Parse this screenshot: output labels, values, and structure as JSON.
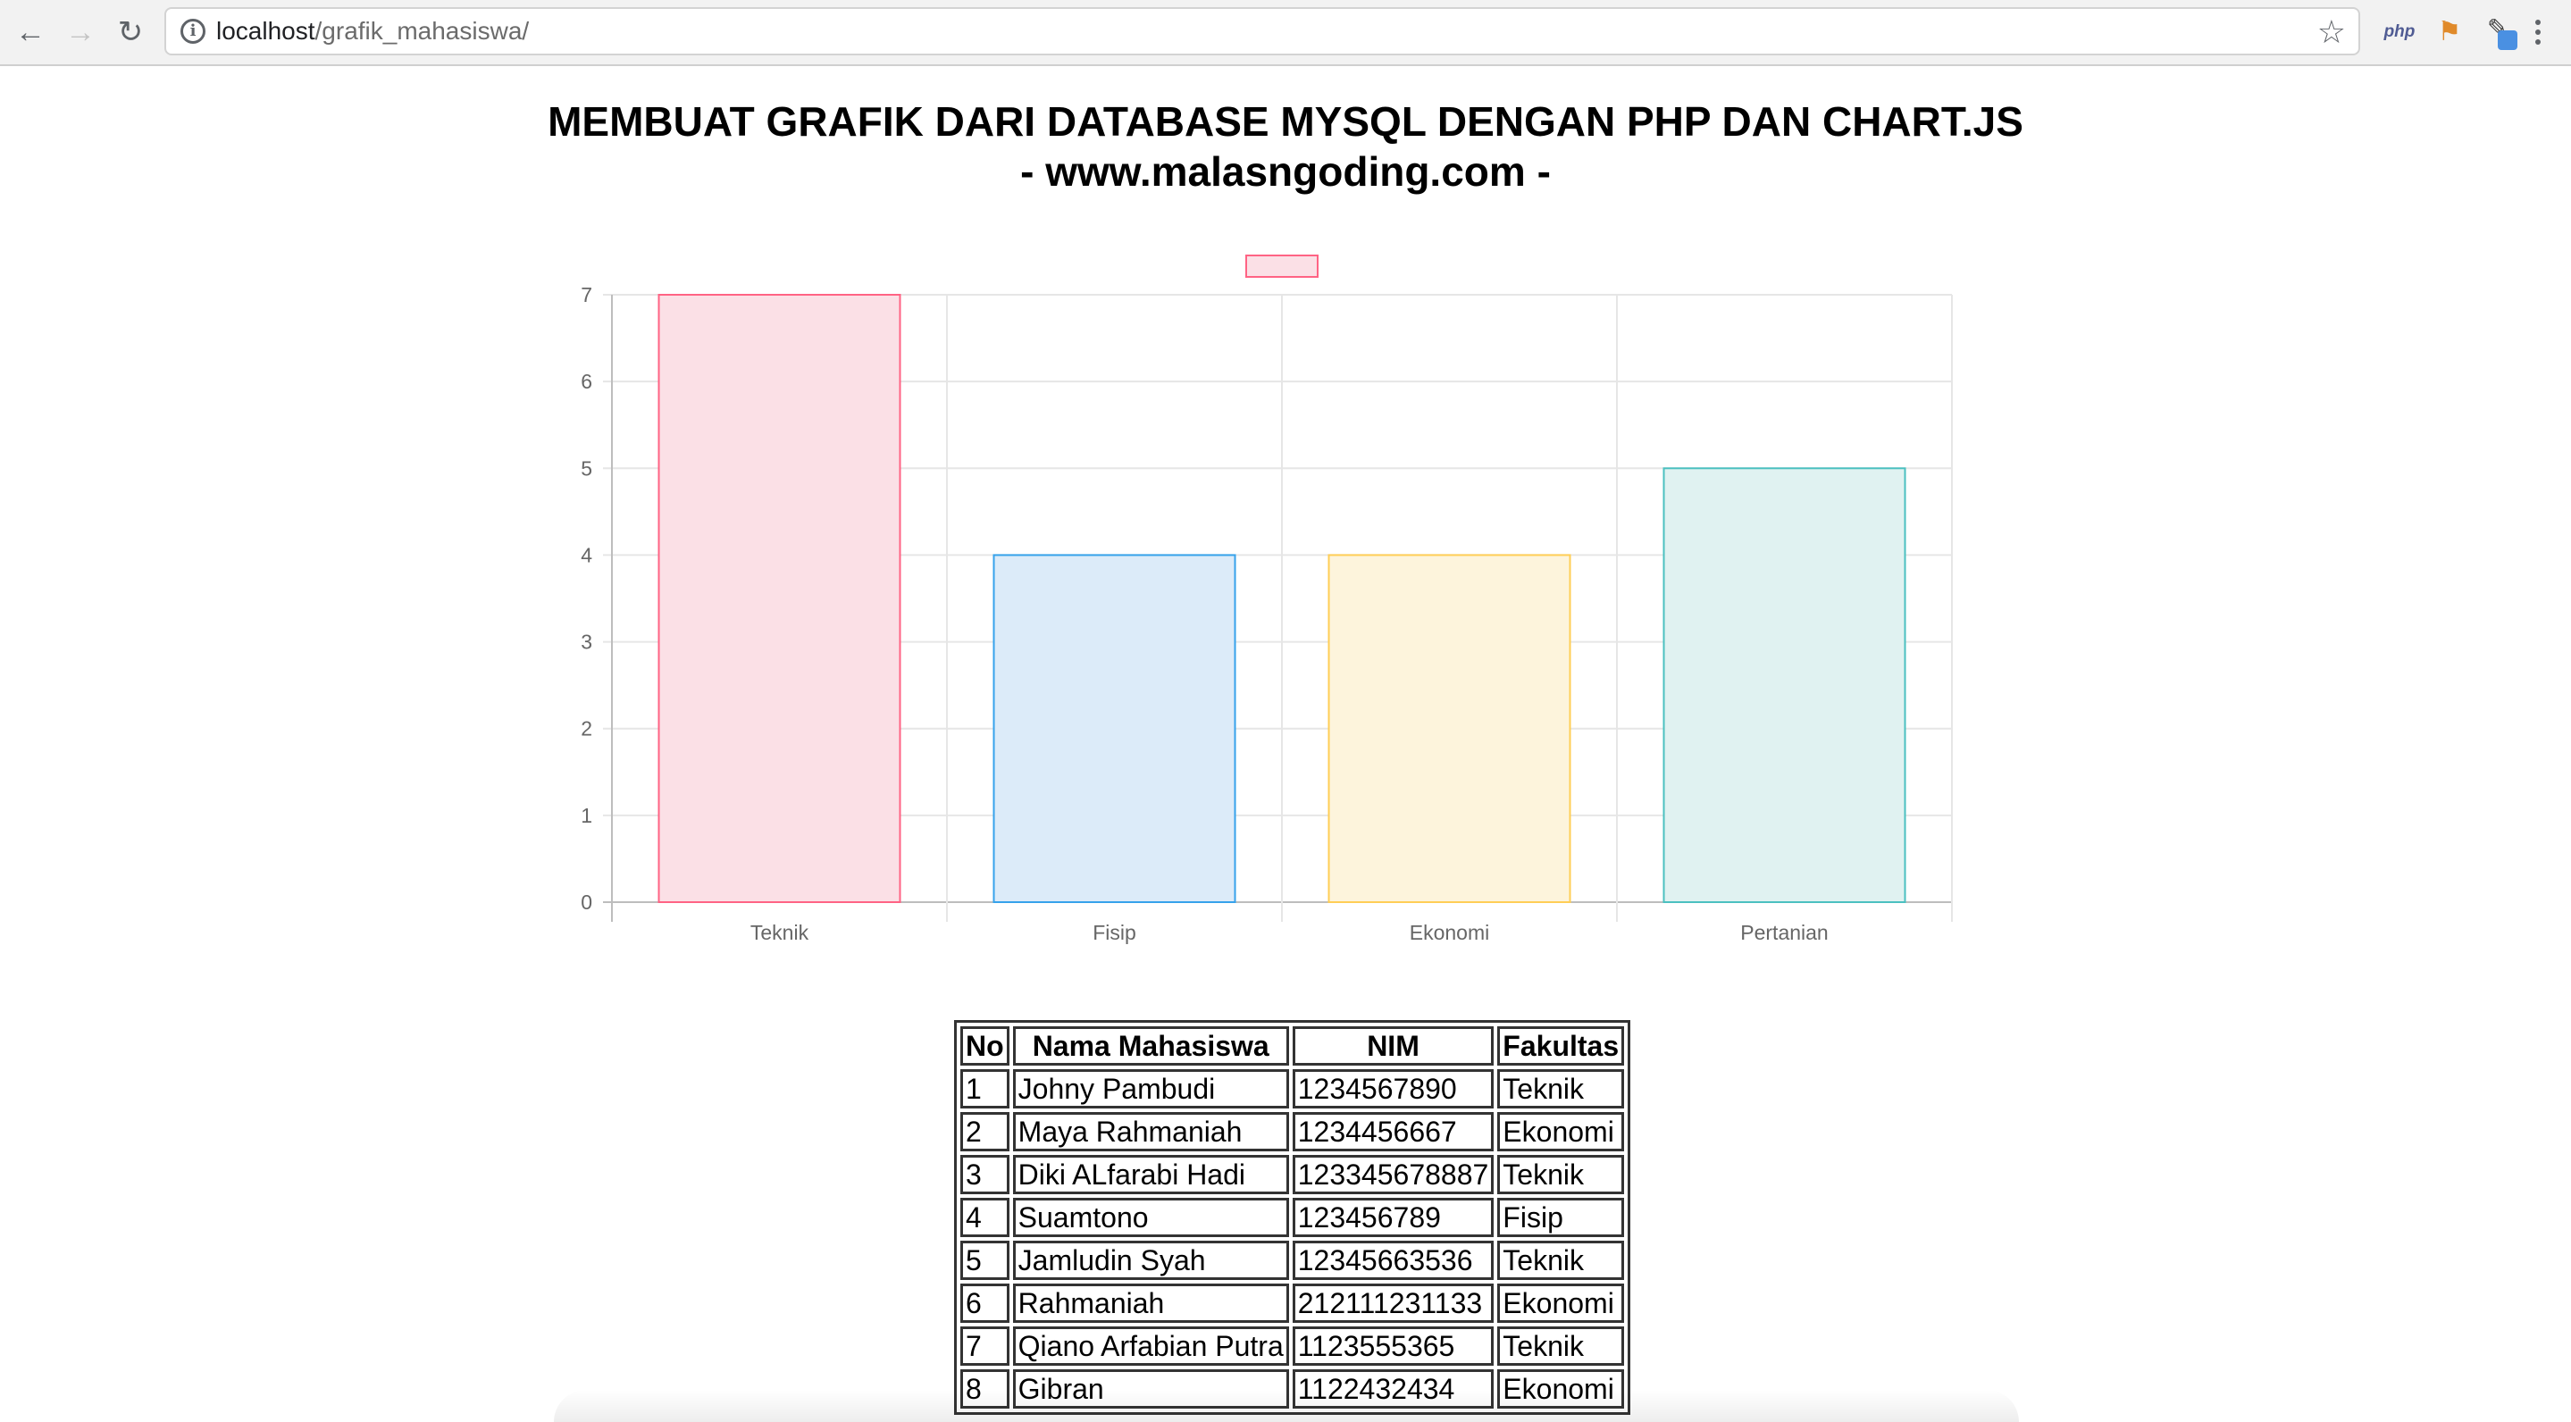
{
  "browser": {
    "url_host": "localhost",
    "url_path": "/grafik_mahasiswa/",
    "icons": {
      "back": "arrow-left",
      "forward": "arrow-right",
      "reload": "reload",
      "info": "info",
      "star": "star",
      "menu": "three-dots-vertical"
    },
    "extensions": {
      "php": "php",
      "flag": "flag-icon",
      "pen": "pen-icon"
    }
  },
  "page": {
    "title": "MEMBUAT GRAFIK DARI DATABASE MYSQL DENGAN PHP DAN CHART.JS",
    "subtitle": "- www.malasngoding.com -"
  },
  "chart_data": {
    "type": "bar",
    "categories": [
      "Teknik",
      "Fisip",
      "Ekonomi",
      "Pertanian"
    ],
    "values": [
      7,
      4,
      4,
      5
    ],
    "ylim": [
      0,
      7
    ],
    "yticks": [
      0,
      1,
      2,
      3,
      4,
      5,
      6,
      7
    ],
    "grid": true,
    "legend": "top",
    "legend_label": "",
    "colors": {
      "fill": [
        "#fbe0e6",
        "#dcebf9",
        "#fdf4dc",
        "#e0f2f1"
      ],
      "border": [
        "#ff6384",
        "#36a2eb",
        "#ffce56",
        "#4bc0c0"
      ],
      "grid": "#e6e6e6",
      "axis": "#bdbdbd"
    }
  },
  "table": {
    "headers": [
      "No",
      "Nama Mahasiswa",
      "NIM",
      "Fakultas"
    ],
    "rows": [
      [
        "1",
        "Johny Pambudi",
        "1234567890",
        "Teknik"
      ],
      [
        "2",
        "Maya Rahmaniah",
        "1234456667",
        "Ekonomi"
      ],
      [
        "3",
        "Diki ALfarabi Hadi",
        "123345678887",
        "Teknik"
      ],
      [
        "4",
        "Suamtono",
        "123456789",
        "Fisip"
      ],
      [
        "5",
        "Jamludin Syah",
        "12345663536",
        "Teknik"
      ],
      [
        "6",
        "Rahmaniah",
        "212111231133",
        "Ekonomi"
      ],
      [
        "7",
        "Qiano Arfabian Putra",
        "1123555365",
        "Teknik"
      ],
      [
        "8",
        "Gibran",
        "1122432434",
        "Ekonomi"
      ]
    ]
  }
}
